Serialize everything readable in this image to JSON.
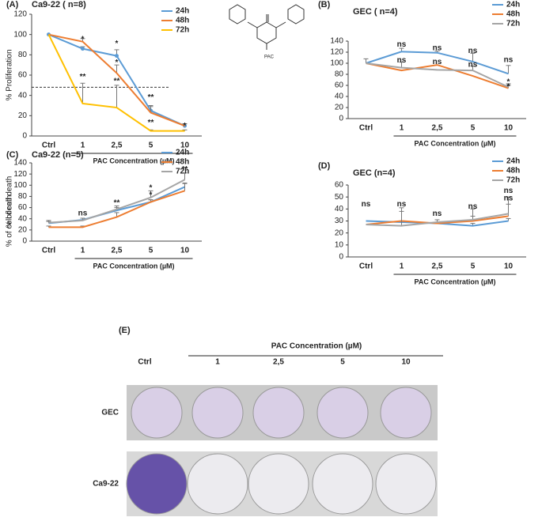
{
  "chart_data": [
    {
      "type": "line",
      "label": "(A)",
      "title": "Ca9-22 ( n=8)",
      "ylabel": "% Proliferation",
      "xlabel": "PAC Concentration (µM)",
      "categories": [
        "Ctrl",
        "1",
        "2,5",
        "5",
        "10"
      ],
      "ylim": [
        0,
        120
      ],
      "yticks": [
        0,
        20,
        40,
        60,
        80,
        100,
        120
      ],
      "reference_line": 48,
      "structure_label": "PAC",
      "series": [
        {
          "name": "24h",
          "color": "#5b9bd5",
          "values": [
            100,
            86,
            79,
            25,
            10
          ],
          "errors": [
            null,
            2,
            6,
            5,
            2
          ]
        },
        {
          "name": "48h",
          "color": "#ed7d31",
          "values": [
            100,
            93,
            62,
            23,
            10
          ],
          "errors": [
            null,
            3,
            8,
            6,
            2
          ]
        },
        {
          "name": "72h",
          "color": "#ffc000",
          "values": [
            100,
            32,
            28,
            5,
            5
          ],
          "errors": [
            null,
            20,
            22,
            1,
            1
          ]
        }
      ],
      "annotations": [
        {
          "text": "*",
          "x": "1",
          "y": 95
        },
        {
          "text": "*",
          "x": "2,5",
          "y": 91
        },
        {
          "text": "*",
          "x": "2,5",
          "y": 72
        },
        {
          "text": "**",
          "x": "1",
          "y": 58
        },
        {
          "text": "**",
          "x": "2,5",
          "y": 54
        },
        {
          "text": "**",
          "x": "5",
          "y": 38
        },
        {
          "text": "**",
          "x": "5",
          "y": 13
        },
        {
          "text": "*",
          "x": "10",
          "y": 10
        }
      ]
    },
    {
      "type": "line",
      "label": "(B)",
      "title": "GEC ( n=4)",
      "xlabel": "PAC Concentration (µM)",
      "categories": [
        "Ctrl",
        "1",
        "2,5",
        "5",
        "10"
      ],
      "ylim": [
        0,
        140
      ],
      "yticks": [
        0,
        20,
        40,
        60,
        80,
        100,
        120,
        140
      ],
      "series": [
        {
          "name": "24h",
          "color": "#5b9bd5",
          "values": [
            100,
            121,
            119,
            103,
            81
          ],
          "errors": [
            8,
            6,
            3,
            15,
            15
          ]
        },
        {
          "name": "48h",
          "color": "#ed7d31",
          "values": [
            100,
            87,
            97,
            77,
            55
          ],
          "errors": [
            null,
            null,
            null,
            null,
            5
          ]
        },
        {
          "name": "72h",
          "color": "#a5a5a5",
          "values": [
            100,
            92,
            88,
            87,
            57
          ],
          "errors": [
            null,
            10,
            null,
            8,
            6
          ]
        }
      ],
      "annotations": [
        {
          "text": "ns",
          "x": "1",
          "y": 134
        },
        {
          "text": "ns",
          "x": "1",
          "y": 105
        },
        {
          "text": "ns",
          "x": "2,5",
          "y": 127
        },
        {
          "text": "ns",
          "x": "2,5",
          "y": 102
        },
        {
          "text": "ns",
          "x": "5",
          "y": 122
        },
        {
          "text": "ns",
          "x": "5",
          "y": 97
        },
        {
          "text": "ns",
          "x": "10",
          "y": 106
        },
        {
          "text": "*",
          "x": "10",
          "y": 66
        },
        {
          "text": "*",
          "x": "10",
          "y": 57
        }
      ]
    },
    {
      "type": "line",
      "label": "(C)",
      "title": "Ca9-22 (n=5)",
      "ylabel": "% of cell death",
      "xlabel": "PAC Concentration (µM)",
      "categories": [
        "Ctrl",
        "1",
        "2,5",
        "5",
        "10"
      ],
      "ylim": [
        0,
        140
      ],
      "yticks": [
        0,
        20,
        40,
        60,
        80,
        100,
        120,
        140
      ],
      "series": [
        {
          "name": "24h",
          "color": "#5b9bd5",
          "values": [
            32,
            38,
            55,
            70,
            97
          ],
          "errors": [
            3,
            3,
            5,
            4,
            6
          ]
        },
        {
          "name": "48h",
          "color": "#ed7d31",
          "values": [
            25,
            25,
            43,
            70,
            90
          ],
          "errors": [
            2,
            2,
            8,
            4,
            14
          ]
        },
        {
          "name": "72h",
          "color": "#a5a5a5",
          "values": [
            33,
            37,
            57,
            78,
            110
          ],
          "errors": [
            4,
            4,
            6,
            12,
            12
          ]
        }
      ],
      "annotations": [
        {
          "text": "ns",
          "x": "1",
          "y": 50
        },
        {
          "text": "**",
          "x": "2,5",
          "y": 68
        },
        {
          "text": "*",
          "x": "5",
          "y": 95
        },
        {
          "text": "*",
          "x": "5",
          "y": 82
        },
        {
          "text": "**",
          "x": "10",
          "y": 128
        }
      ]
    },
    {
      "type": "line",
      "label": "(D)",
      "title": "GEC (n=4)",
      "ylabel": "% of cell death",
      "xlabel": "PAC Concentration (µM)",
      "categories": [
        "Ctrl",
        "1",
        "2,5",
        "5",
        "10"
      ],
      "ylim": [
        0,
        60
      ],
      "yticks": [
        0,
        10,
        20,
        30,
        40,
        50,
        60
      ],
      "series": [
        {
          "name": "24h",
          "color": "#5b9bd5",
          "values": [
            30,
            29,
            28,
            26,
            30
          ],
          "errors": [
            null,
            null,
            null,
            2,
            2
          ]
        },
        {
          "name": "48h",
          "color": "#ed7d31",
          "values": [
            27,
            30,
            28,
            30,
            34
          ],
          "errors": [
            null,
            8,
            3,
            4,
            10
          ]
        },
        {
          "name": "72h",
          "color": "#a5a5a5",
          "values": [
            27,
            26,
            29,
            31,
            36
          ],
          "errors": [
            null,
            15,
            null,
            9,
            14
          ]
        }
      ],
      "annotations": [
        {
          "text": "ns",
          "x": "Ctrl",
          "y": 44
        },
        {
          "text": "ns",
          "x": "1",
          "y": 44
        },
        {
          "text": "ns",
          "x": "2,5",
          "y": 36
        },
        {
          "text": "ns",
          "x": "5",
          "y": 42
        },
        {
          "text": "ns",
          "x": "10",
          "y": 55
        },
        {
          "text": "ns",
          "x": "10",
          "y": 49
        }
      ]
    }
  ],
  "panel_e": {
    "label": "(E)",
    "header": "PAC Concentration (µM)",
    "columns": [
      "Ctrl",
      "1",
      "2,5",
      "5",
      "10"
    ],
    "rows": [
      "GEC",
      "Ca9-22"
    ]
  }
}
